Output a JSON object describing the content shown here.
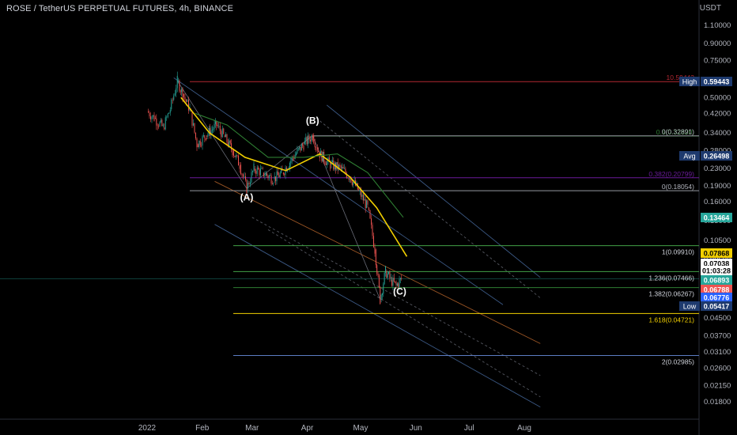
{
  "header": {
    "title": "ROSE / TetherUS PERPETUAL FUTURES, 4h, BINANCE"
  },
  "colors": {
    "background": "#000000",
    "text": "#b2b5be",
    "up": "#26a69a",
    "down": "#ef5350"
  },
  "chart_data": {
    "type": "candlestick",
    "y_unit": "USDT",
    "y_scale": "log",
    "ylim": [
      0.0165,
      1.2
    ],
    "x_ticks": [
      "2022",
      "Feb",
      "Mar",
      "Apr",
      "May",
      "Jun",
      "Jul",
      "Aug"
    ],
    "y_ticks": [
      1.1,
      0.9,
      0.75,
      0.6,
      0.5,
      0.42,
      0.34,
      0.28,
      0.23,
      0.19,
      0.16,
      0.13,
      0.105,
      0.085,
      0.045,
      0.037,
      0.031,
      0.026,
      0.0215,
      0.018
    ],
    "price_path": [
      [
        "2022-01-01",
        0.43
      ],
      [
        "2022-01-05",
        0.4
      ],
      [
        "2022-01-10",
        0.36
      ],
      [
        "2022-01-14",
        0.44
      ],
      [
        "2022-01-18",
        0.6
      ],
      [
        "2022-01-21",
        0.52
      ],
      [
        "2022-01-25",
        0.44
      ],
      [
        "2022-01-29",
        0.3
      ],
      [
        "2022-02-03",
        0.33
      ],
      [
        "2022-02-09",
        0.37
      ],
      [
        "2022-02-13",
        0.33
      ],
      [
        "2022-02-18",
        0.28
      ],
      [
        "2022-02-22",
        0.24
      ],
      [
        "2022-02-26",
        0.185
      ],
      [
        "2022-03-02",
        0.23
      ],
      [
        "2022-03-07",
        0.22
      ],
      [
        "2022-03-13",
        0.205
      ],
      [
        "2022-03-18",
        0.22
      ],
      [
        "2022-03-24",
        0.26
      ],
      [
        "2022-03-30",
        0.3
      ],
      [
        "2022-04-04",
        0.33
      ],
      [
        "2022-04-08",
        0.27
      ],
      [
        "2022-04-14",
        0.24
      ],
      [
        "2022-04-20",
        0.23
      ],
      [
        "2022-04-25",
        0.21
      ],
      [
        "2022-04-30",
        0.18
      ],
      [
        "2022-05-05",
        0.15
      ],
      [
        "2022-05-09",
        0.095
      ],
      [
        "2022-05-12",
        0.055
      ],
      [
        "2022-05-15",
        0.075
      ],
      [
        "2022-05-18",
        0.068
      ],
      [
        "2022-05-21",
        0.064
      ],
      [
        "2022-05-24",
        0.069
      ]
    ],
    "moving_averages": [
      {
        "color": "#f2d000",
        "values": [
          [
            "2022-01-20",
            0.5
          ],
          [
            "2022-02-05",
            0.34
          ],
          [
            "2022-02-25",
            0.26
          ],
          [
            "2022-03-20",
            0.225
          ],
          [
            "2022-04-08",
            0.27
          ],
          [
            "2022-04-25",
            0.21
          ],
          [
            "2022-05-10",
            0.15
          ],
          [
            "2022-05-27",
            0.088
          ]
        ]
      },
      {
        "color": "#2e7d32",
        "values": [
          [
            "2022-01-28",
            0.42
          ],
          [
            "2022-02-15",
            0.37
          ],
          [
            "2022-03-10",
            0.26
          ],
          [
            "2022-03-30",
            0.26
          ],
          [
            "2022-04-18",
            0.27
          ],
          [
            "2022-05-05",
            0.22
          ],
          [
            "2022-05-25",
            0.135
          ]
        ]
      }
    ],
    "wave_labels": [
      {
        "text": "(A)",
        "date": "2022-02-26",
        "value": 0.162
      },
      {
        "text": "(B)",
        "date": "2022-04-04",
        "value": 0.375
      },
      {
        "text": "(C)",
        "date": "2022-05-23",
        "value": 0.058
      }
    ],
    "fib_upper": [
      {
        "label": "10.59443",
        "value": 0.59443,
        "color": "#b22833"
      },
      {
        "label": "0.5(0.32820)",
        "value": 0.3282,
        "color": "#2e7d32"
      },
      {
        "label": "0(0.32891)",
        "value": 0.32891,
        "color": "#9598a1"
      },
      {
        "label": "0.382(0.20799)",
        "value": 0.20799,
        "color": "#6a1b9a"
      },
      {
        "label": "0(0.18054)",
        "value": 0.18054,
        "color": "#9598a1"
      }
    ],
    "fib_extension": [
      {
        "label": "1(0.09910)",
        "value": 0.0991,
        "color": "#43a047"
      },
      {
        "label": "1.236(0.07466)",
        "value": 0.07466,
        "color": "#43a047"
      },
      {
        "label": "1.382(0.06267)",
        "value": 0.06267,
        "color": "#2e7d32"
      },
      {
        "label": "1.618(0.04721)",
        "value": 0.04721,
        "color": "#f2d000"
      },
      {
        "label": "2(0.02985)",
        "value": 0.02985,
        "color": "#5c7cc2"
      }
    ],
    "price_tags": [
      {
        "label": "High",
        "value": "0.59443",
        "price": 0.59443,
        "bg": "#1e3a6e",
        "fg": "#ffffff"
      },
      {
        "label": "Avg",
        "value": "0.26498",
        "price": 0.26498,
        "bg": "#1e3a6e",
        "fg": "#ffffff"
      },
      {
        "label": "",
        "value": "0.13464",
        "price": 0.13464,
        "bg": "#26a69a",
        "fg": "#ffffff"
      },
      {
        "label": "",
        "value": "0.07868",
        "price": 0.07868,
        "bg": "#f2d000",
        "fg": "#000000"
      },
      {
        "label": "",
        "value": "0.07038",
        "price": 0.07038,
        "bg": "#ffffff",
        "fg": "#000000"
      },
      {
        "label": "",
        "value": "01:03:28",
        "price": 0.0668,
        "bg": "#ffffff",
        "fg": "#000000"
      },
      {
        "label": "",
        "value": "0.06893",
        "price": 0.06893,
        "bg": "#26a69a",
        "fg": "#ffffff"
      },
      {
        "label": "",
        "value": "0.06788",
        "price": 0.06788,
        "bg": "#ef5350",
        "fg": "#ffffff"
      },
      {
        "label": "",
        "value": "0.06776",
        "price": 0.06776,
        "bg": "#2962ff",
        "fg": "#ffffff"
      },
      {
        "label": "Low",
        "value": "0.05417",
        "price": 0.05417,
        "bg": "#1e3a6e",
        "fg": "#ffffff"
      }
    ]
  }
}
